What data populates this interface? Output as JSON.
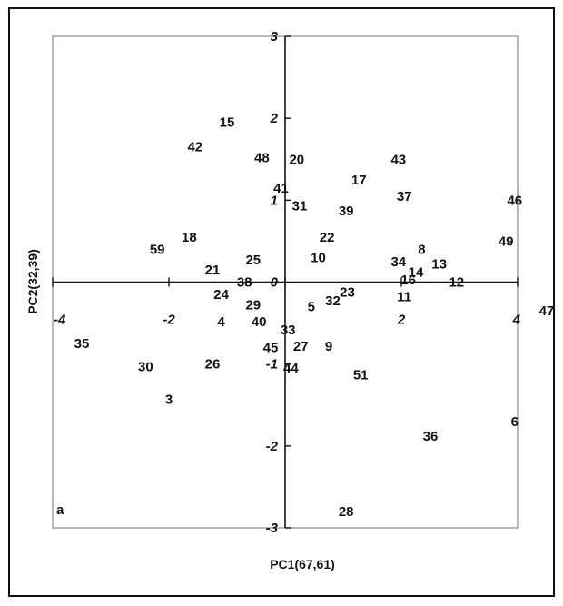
{
  "chart_data": {
    "type": "scatter",
    "panel_label": "a",
    "xlabel": "PC1(67,61)",
    "ylabel": "PC2(32,39)",
    "xlim": [
      -4,
      4
    ],
    "ylim": [
      -3,
      3
    ],
    "grid": false,
    "x_ticks": [
      {
        "value": -4,
        "label": "-4"
      },
      {
        "value": -2,
        "label": "-2"
      },
      {
        "value": 0,
        "label": "0"
      },
      {
        "value": 2,
        "label": "2"
      },
      {
        "value": 4,
        "label": "4"
      }
    ],
    "y_ticks": [
      {
        "value": 3,
        "label": "3"
      },
      {
        "value": 2,
        "label": "2"
      },
      {
        "value": 1,
        "label": "1"
      },
      {
        "value": 0,
        "label": "0"
      },
      {
        "value": -1,
        "label": "-1"
      },
      {
        "value": -2,
        "label": "-2"
      },
      {
        "value": -3,
        "label": "-3"
      }
    ],
    "points": [
      {
        "label": "15",
        "x": -1.0,
        "y": 1.95
      },
      {
        "label": "42",
        "x": -1.55,
        "y": 1.65
      },
      {
        "label": "48",
        "x": -0.4,
        "y": 1.52
      },
      {
        "label": "20",
        "x": 0.2,
        "y": 1.5
      },
      {
        "label": "43",
        "x": 1.95,
        "y": 1.5
      },
      {
        "label": "17",
        "x": 1.27,
        "y": 1.25
      },
      {
        "label": "41",
        "x": -0.07,
        "y": 1.15
      },
      {
        "label": "37",
        "x": 2.05,
        "y": 1.05
      },
      {
        "label": "46",
        "x": 3.95,
        "y": 1.0
      },
      {
        "label": "31",
        "x": 0.25,
        "y": 0.93
      },
      {
        "label": "39",
        "x": 1.05,
        "y": 0.87
      },
      {
        "label": "22",
        "x": 0.72,
        "y": 0.55
      },
      {
        "label": "18",
        "x": -1.65,
        "y": 0.55
      },
      {
        "label": "49",
        "x": 3.8,
        "y": 0.5
      },
      {
        "label": "59",
        "x": -2.2,
        "y": 0.4
      },
      {
        "label": "8",
        "x": 2.35,
        "y": 0.4
      },
      {
        "label": "10",
        "x": 0.57,
        "y": 0.3
      },
      {
        "label": "34",
        "x": 1.95,
        "y": 0.25
      },
      {
        "label": "25",
        "x": -0.55,
        "y": 0.27
      },
      {
        "label": "13",
        "x": 2.65,
        "y": 0.22
      },
      {
        "label": "21",
        "x": -1.25,
        "y": 0.15
      },
      {
        "label": "14",
        "x": 2.25,
        "y": 0.12
      },
      {
        "label": "16",
        "x": 2.12,
        "y": 0.03
      },
      {
        "label": "38",
        "x": -0.7,
        "y": 0.0
      },
      {
        "label": "12",
        "x": 2.95,
        "y": 0.0
      },
      {
        "label": "23",
        "x": 1.07,
        "y": -0.12
      },
      {
        "label": "24",
        "x": -1.1,
        "y": -0.15
      },
      {
        "label": "11",
        "x": 2.05,
        "y": -0.18
      },
      {
        "label": "32",
        "x": 0.82,
        "y": -0.23
      },
      {
        "label": "29",
        "x": -0.55,
        "y": -0.28
      },
      {
        "label": "5",
        "x": 0.45,
        "y": -0.3
      },
      {
        "label": "47",
        "x": 4.5,
        "y": -0.35
      },
      {
        "label": "40",
        "x": -0.45,
        "y": -0.48
      },
      {
        "label": "4",
        "x": -1.1,
        "y": -0.48
      },
      {
        "label": "33",
        "x": 0.05,
        "y": -0.58
      },
      {
        "label": "35",
        "x": -3.5,
        "y": -0.75
      },
      {
        "label": "27",
        "x": 0.27,
        "y": -0.78
      },
      {
        "label": "45",
        "x": -0.25,
        "y": -0.8
      },
      {
        "label": "9",
        "x": 0.75,
        "y": -0.78
      },
      {
        "label": "30",
        "x": -2.4,
        "y": -1.03
      },
      {
        "label": "26",
        "x": -1.25,
        "y": -1.0
      },
      {
        "label": "44",
        "x": 0.1,
        "y": -1.05
      },
      {
        "label": "51",
        "x": 1.3,
        "y": -1.13
      },
      {
        "label": "3",
        "x": -2.0,
        "y": -1.43
      },
      {
        "label": "6",
        "x": 3.95,
        "y": -1.7
      },
      {
        "label": "36",
        "x": 2.5,
        "y": -1.88
      },
      {
        "label": "28",
        "x": 1.05,
        "y": -2.8
      }
    ]
  }
}
